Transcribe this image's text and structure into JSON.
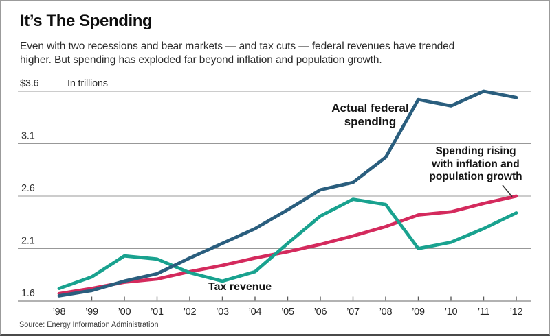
{
  "header": {
    "title": "It’s The Spending",
    "subtitle": "Even with two recessions and bear markets — and tax cuts — federal revenues have trended\nhigher. But spending has exploded far beyond inflation and population growth."
  },
  "chart_data": {
    "type": "line",
    "unit_label": "In trillions",
    "years": [
      1998,
      1999,
      2000,
      2001,
      2002,
      2003,
      2004,
      2005,
      2006,
      2007,
      2008,
      2009,
      2010,
      2011,
      2012
    ],
    "x_labels": [
      "’98",
      "’99",
      "’00",
      "’01",
      "’02",
      "’03",
      "’04",
      "’05",
      "’06",
      "’07",
      "’08",
      "’09",
      "’10",
      "’11",
      "’12"
    ],
    "ylim": [
      1.6,
      3.6
    ],
    "grid": true,
    "y_axis": {
      "unit": "trillions of dollars",
      "ticks": [
        {
          "label": "$3.6",
          "value": 3.6
        },
        {
          "label": "3.1",
          "value": 3.1
        },
        {
          "label": "2.6",
          "value": 2.6
        },
        {
          "label": "2.1",
          "value": 2.1
        },
        {
          "label": "1.6",
          "value": 1.6
        }
      ]
    },
    "series": [
      {
        "name": "Actual federal spending",
        "color": "#2a5e7e",
        "values": [
          1.65,
          1.7,
          1.79,
          1.86,
          2.01,
          2.15,
          2.29,
          2.47,
          2.66,
          2.73,
          2.97,
          3.52,
          3.46,
          3.6,
          3.54
        ]
      },
      {
        "name": "Spending rising with inflation and population growth",
        "color": "#d42a5d",
        "values": [
          1.67,
          1.72,
          1.78,
          1.81,
          1.88,
          1.94,
          2.01,
          2.07,
          2.14,
          2.22,
          2.31,
          2.42,
          2.45,
          2.53,
          2.6
        ]
      },
      {
        "name": "Tax revenue",
        "color": "#19a28f",
        "values": [
          1.72,
          1.83,
          2.03,
          2.0,
          1.87,
          1.79,
          1.88,
          2.15,
          2.41,
          2.57,
          2.52,
          2.1,
          2.16,
          2.29,
          2.44
        ]
      }
    ],
    "annotations": [
      {
        "id": "actual",
        "text": "Actual federal\nspending"
      },
      {
        "id": "inflation",
        "text": "Spending rising\nwith inflation and\npopulation growth"
      },
      {
        "id": "tax",
        "text": "Tax revenue"
      }
    ],
    "legend_position": "inline-annotations"
  },
  "footer": {
    "source": "Source: Energy Information Administration"
  }
}
